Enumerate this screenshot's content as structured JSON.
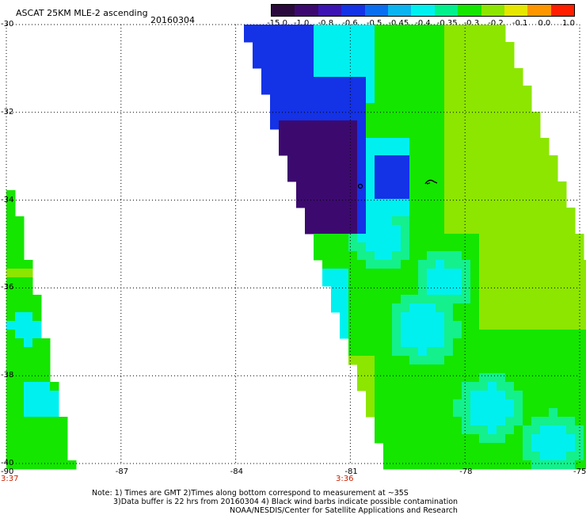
{
  "header": {
    "title": "ASCAT 25KM MLE-2 ascending",
    "date": "20160304"
  },
  "colorbar": {
    "labels": [
      "-15.0",
      "-1.0",
      "-0.8",
      "-0.6",
      "-0.5",
      "-0.45",
      "-0.4",
      "-0.35",
      "-0.3",
      "-0.2",
      "-0.1",
      "0.0",
      "1.0"
    ],
    "colors": [
      "#2a0a3c",
      "#3c0a6e",
      "#3c14b4",
      "#1432e6",
      "#0a6ef0",
      "#0ab4f0",
      "#00f0f0",
      "#00f08c",
      "#14e600",
      "#8ce600",
      "#e6e600",
      "#ff9600",
      "#ff1e00"
    ]
  },
  "axes": {
    "lat_ticks": [
      "-30",
      "-32",
      "-34",
      "-36",
      "-38",
      "-40"
    ],
    "lon_ticks": [
      "-90",
      "-87",
      "-84",
      "-81",
      "-78",
      "-75"
    ],
    "lat_range": [
      -40,
      -30
    ],
    "lon_range": [
      -90,
      -75
    ]
  },
  "pass_times": [
    "3:37",
    "3:36"
  ],
  "notes": {
    "line1": "Note: 1) Times are GMT 2)Times along bottom correspond to measurement at ~35S",
    "line2": "3)Data buffer is 22 hrs from 20160304 4) Black wind barbs indicate possible contamination",
    "line3": "NOAA/NESDIS/Center for Satellite Applications and Research"
  }
}
